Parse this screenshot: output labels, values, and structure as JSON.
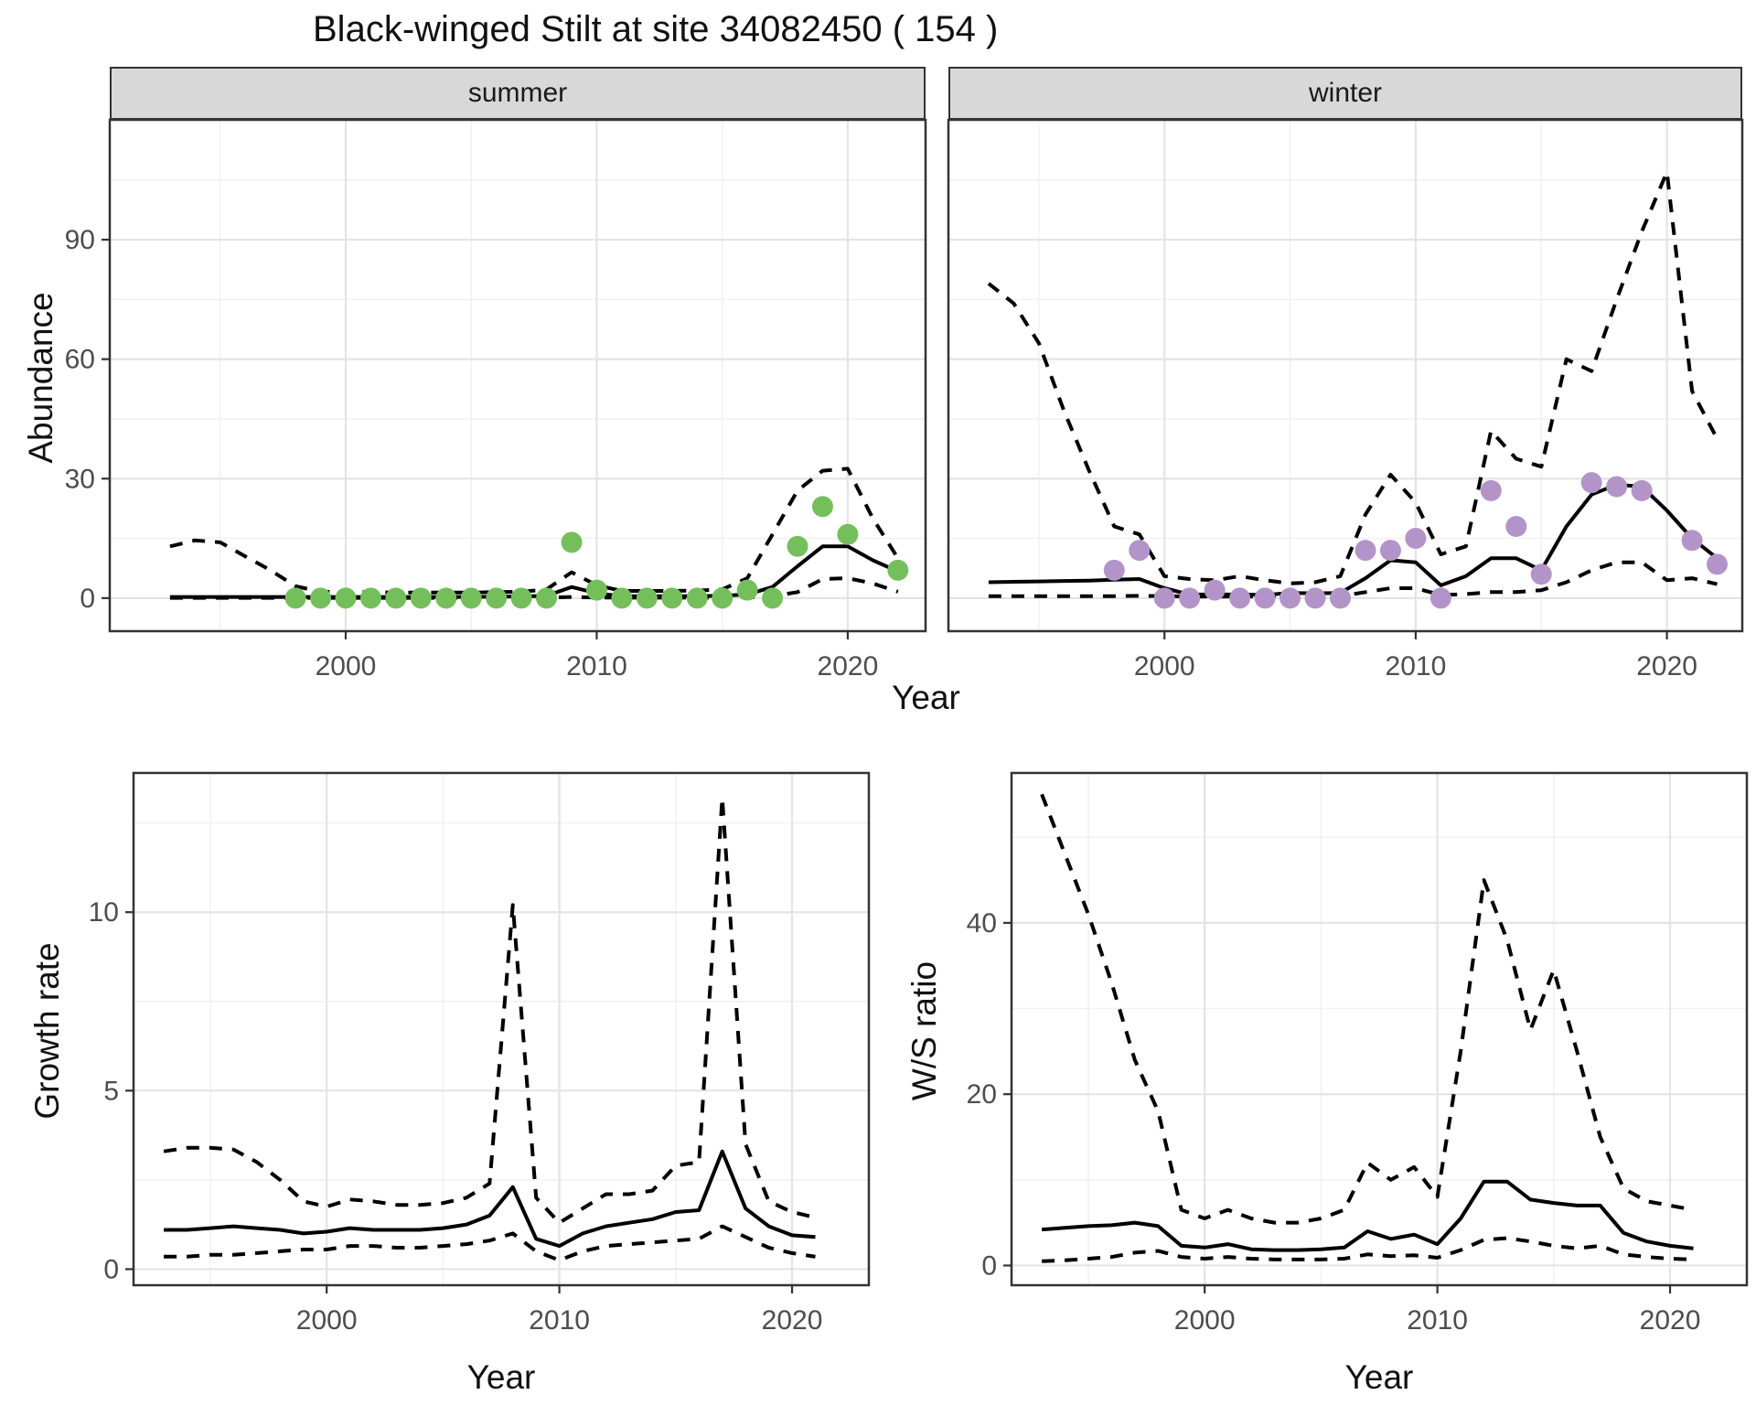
{
  "title": "Black-winged Stilt at site 34082450 ( 154 )",
  "shared_xlabel": "Year",
  "colors": {
    "summer_point": "#74BF5C",
    "winter_point": "#B394C8",
    "line": "#000000",
    "grid_major": "#E4E4E4",
    "grid_minor": "#F1F1F1",
    "panel_border": "#333333",
    "strip_bg": "#D8D8D8",
    "tick_text": "#4D4D4D"
  },
  "chart_data": [
    {
      "id": "abundance_summer",
      "type": "line",
      "facet_label": "summer",
      "xlabel": "Year",
      "ylabel": "Abundance",
      "xlim": [
        1990.6,
        2023.1
      ],
      "ylim": [
        -8.3,
        120.1
      ],
      "xticks": [
        2000,
        2010,
        2020
      ],
      "yticks": [
        0,
        30,
        60,
        90
      ],
      "minor_x": [
        1995,
        2005,
        2015
      ],
      "minor_y": [
        15,
        45,
        75,
        105
      ],
      "show_y_axis": true,
      "x": [
        1993,
        1994,
        1995,
        1996,
        1997,
        1998,
        1999,
        2000,
        2001,
        2002,
        2003,
        2004,
        2005,
        2006,
        2007,
        2008,
        2009,
        2010,
        2011,
        2012,
        2013,
        2014,
        2015,
        2016,
        2017,
        2018,
        2019,
        2020,
        2021,
        2022
      ],
      "series": [
        {
          "name": "estimate",
          "style": "solid",
          "values": [
            0.3,
            0.3,
            0.3,
            0.3,
            0.3,
            0.3,
            0.3,
            0.3,
            0.3,
            0.3,
            0.3,
            0.3,
            0.3,
            0.35,
            0.4,
            0.6,
            2.8,
            1.2,
            0.5,
            0.5,
            0.5,
            0.5,
            0.6,
            0.9,
            2.8,
            8,
            13,
            13,
            9.5,
            6.7
          ]
        },
        {
          "name": "upper-ci",
          "style": "dashed",
          "values": [
            13,
            14.5,
            14,
            10.5,
            7,
            3,
            1.6,
            1.5,
            1.5,
            1.4,
            1.4,
            1.4,
            1.4,
            1.5,
            1.6,
            2.2,
            6.5,
            3.2,
            1.8,
            1.8,
            1.8,
            1.9,
            2.2,
            5,
            16,
            27,
            32,
            32.5,
            20,
            10
          ]
        },
        {
          "name": "lower-ci",
          "style": "dashed",
          "values": [
            0.05,
            0.05,
            0.05,
            0.05,
            0.05,
            0.05,
            0.05,
            0.05,
            0.05,
            0.05,
            0.05,
            0.05,
            0.05,
            0.05,
            0.05,
            0.1,
            0.3,
            0.15,
            0.1,
            0.1,
            0.1,
            0.1,
            0.1,
            0.2,
            0.5,
            1.5,
            4.8,
            5,
            3.7,
            1.6
          ]
        }
      ],
      "points": {
        "color": "#74BF5C",
        "x": [
          1998,
          1999,
          2000,
          2001,
          2002,
          2003,
          2004,
          2005,
          2006,
          2007,
          2008,
          2009,
          2010,
          2011,
          2012,
          2013,
          2014,
          2015,
          2016,
          2017,
          2018,
          2019,
          2020,
          2022
        ],
        "y": [
          0,
          0,
          0,
          0,
          0,
          0,
          0,
          0,
          0,
          0,
          0,
          14,
          2,
          0,
          0,
          0,
          0,
          0,
          2,
          0,
          13,
          23,
          16,
          7
        ]
      }
    },
    {
      "id": "abundance_winter",
      "type": "line",
      "facet_label": "winter",
      "xlabel": "Year",
      "ylabel": "Abundance",
      "xlim": [
        1991.4,
        2023.0
      ],
      "ylim": [
        -8.3,
        120.1
      ],
      "xticks": [
        2000,
        2010,
        2020
      ],
      "yticks": [
        0,
        30,
        60,
        90
      ],
      "minor_x": [
        1995,
        2005,
        2015
      ],
      "minor_y": [
        15,
        45,
        75,
        105
      ],
      "show_y_axis": false,
      "x": [
        1993,
        1994,
        1995,
        1996,
        1997,
        1998,
        1999,
        2000,
        2001,
        2002,
        2003,
        2004,
        2005,
        2006,
        2007,
        2008,
        2009,
        2010,
        2011,
        2012,
        2013,
        2014,
        2015,
        2016,
        2017,
        2018,
        2019,
        2020,
        2021,
        2022
      ],
      "series": [
        {
          "name": "estimate",
          "style": "solid",
          "values": [
            4,
            4.1,
            4.2,
            4.3,
            4.4,
            4.6,
            4.8,
            2.5,
            0.9,
            0.9,
            0.9,
            0.8,
            1.3,
            1.2,
            1.3,
            5,
            9.5,
            9,
            3.2,
            5.5,
            10,
            10,
            7,
            18,
            26,
            28.5,
            28,
            22,
            15,
            10
          ]
        },
        {
          "name": "upper-ci",
          "style": "dashed",
          "values": [
            79,
            74,
            64,
            47,
            32,
            18,
            16,
            5.5,
            4.8,
            4.5,
            5.5,
            4.5,
            3.7,
            4,
            5.5,
            21,
            31,
            24,
            11,
            13,
            42,
            35,
            33,
            60,
            57,
            75,
            92,
            107,
            52,
            40
          ]
        },
        {
          "name": "lower-ci",
          "style": "dashed",
          "values": [
            0.5,
            0.5,
            0.5,
            0.5,
            0.5,
            0.5,
            0.6,
            0.5,
            0.4,
            0.4,
            0.4,
            0.4,
            0.5,
            0.4,
            0.5,
            1.5,
            2.5,
            2.5,
            0.8,
            1,
            1.5,
            1.5,
            2,
            4,
            7,
            9,
            9,
            4.5,
            5,
            3.5
          ]
        }
      ],
      "points": {
        "color": "#B394C8",
        "x": [
          1998,
          1999,
          2000,
          2001,
          2002,
          2003,
          2004,
          2005,
          2006,
          2007,
          2008,
          2009,
          2010,
          2011,
          2013,
          2014,
          2015,
          2017,
          2018,
          2019,
          2021,
          2022
        ],
        "y": [
          7,
          12,
          0,
          0,
          2,
          0,
          0,
          0,
          0,
          0,
          12,
          12,
          15,
          0,
          27,
          18,
          6,
          29,
          28,
          27,
          14.5,
          8.5
        ]
      }
    },
    {
      "id": "growth_rate",
      "type": "line",
      "facet_label": "",
      "xlabel": "Year",
      "ylabel": "Growth rate",
      "xlim": [
        1991.7,
        2023.3
      ],
      "ylim": [
        -0.45,
        13.9
      ],
      "xticks": [
        2000,
        2010,
        2020
      ],
      "yticks": [
        0,
        5,
        10
      ],
      "minor_x": [
        1995,
        2005,
        2015
      ],
      "minor_y": [
        2.5,
        7.5,
        12.5
      ],
      "show_y_axis": true,
      "x": [
        1993,
        1994,
        1995,
        1996,
        1997,
        1998,
        1999,
        2000,
        2001,
        2002,
        2003,
        2004,
        2005,
        2006,
        2007,
        2008,
        2009,
        2010,
        2011,
        2012,
        2013,
        2014,
        2015,
        2016,
        2017,
        2018,
        2019,
        2020,
        2021
      ],
      "series": [
        {
          "name": "estimate",
          "style": "solid",
          "values": [
            1.1,
            1.1,
            1.15,
            1.2,
            1.15,
            1.1,
            1.0,
            1.05,
            1.15,
            1.1,
            1.1,
            1.1,
            1.15,
            1.25,
            1.5,
            2.3,
            0.85,
            0.65,
            1.0,
            1.2,
            1.3,
            1.4,
            1.6,
            1.65,
            3.3,
            1.7,
            1.2,
            0.95,
            0.9
          ]
        },
        {
          "name": "upper-ci",
          "style": "dashed",
          "values": [
            3.3,
            3.4,
            3.4,
            3.35,
            3.0,
            2.5,
            1.9,
            1.75,
            1.95,
            1.9,
            1.8,
            1.8,
            1.85,
            2.0,
            2.4,
            10.2,
            2.0,
            1.3,
            1.7,
            2.1,
            2.1,
            2.2,
            2.9,
            3.0,
            13.2,
            3.5,
            1.9,
            1.6,
            1.45
          ]
        },
        {
          "name": "lower-ci",
          "style": "dashed",
          "values": [
            0.35,
            0.35,
            0.4,
            0.4,
            0.45,
            0.5,
            0.55,
            0.55,
            0.65,
            0.65,
            0.6,
            0.6,
            0.65,
            0.7,
            0.8,
            1.0,
            0.5,
            0.25,
            0.5,
            0.65,
            0.7,
            0.75,
            0.8,
            0.85,
            1.2,
            0.9,
            0.6,
            0.45,
            0.35
          ]
        }
      ],
      "points": null
    },
    {
      "id": "ws_ratio",
      "type": "line",
      "facet_label": "",
      "xlabel": "Year",
      "ylabel": "W/S ratio",
      "xlim": [
        1991.7,
        2023.3
      ],
      "ylim": [
        -2.3,
        57.5
      ],
      "xticks": [
        2000,
        2010,
        2020
      ],
      "yticks": [
        0,
        20,
        40
      ],
      "minor_x": [
        1995,
        2005,
        2015
      ],
      "minor_y": [
        10,
        30,
        50
      ],
      "show_y_axis": true,
      "x": [
        1993,
        1994,
        1995,
        1996,
        1997,
        1998,
        1999,
        2000,
        2001,
        2002,
        2003,
        2004,
        2005,
        2006,
        2007,
        2008,
        2009,
        2010,
        2011,
        2012,
        2013,
        2014,
        2015,
        2016,
        2017,
        2018,
        2019,
        2020,
        2021
      ],
      "series": [
        {
          "name": "estimate",
          "style": "solid",
          "values": [
            4.2,
            4.4,
            4.6,
            4.7,
            5.0,
            4.6,
            2.3,
            2.1,
            2.5,
            1.9,
            1.8,
            1.8,
            1.9,
            2.1,
            4.0,
            3.1,
            3.6,
            2.5,
            5.5,
            9.8,
            9.8,
            7.7,
            7.3,
            7.0,
            7.0,
            3.8,
            2.8,
            2.3,
            2.0
          ]
        },
        {
          "name": "upper-ci",
          "style": "dashed",
          "values": [
            55,
            48,
            41,
            33,
            24,
            18,
            6.5,
            5.5,
            6.5,
            5.5,
            5,
            5,
            5.5,
            6.5,
            12,
            10,
            11.5,
            8,
            25,
            45,
            38,
            27.5,
            34.5,
            25,
            15,
            9,
            7.5,
            7,
            6.5
          ]
        },
        {
          "name": "lower-ci",
          "style": "dashed",
          "values": [
            0.5,
            0.6,
            0.8,
            1.0,
            1.5,
            1.7,
            1.0,
            0.8,
            1.0,
            0.8,
            0.7,
            0.7,
            0.7,
            0.8,
            1.3,
            1.1,
            1.2,
            0.9,
            1.8,
            3.0,
            3.2,
            2.8,
            2.3,
            2.0,
            2.3,
            1.3,
            1.0,
            0.8,
            0.7
          ]
        }
      ],
      "points": null
    }
  ]
}
